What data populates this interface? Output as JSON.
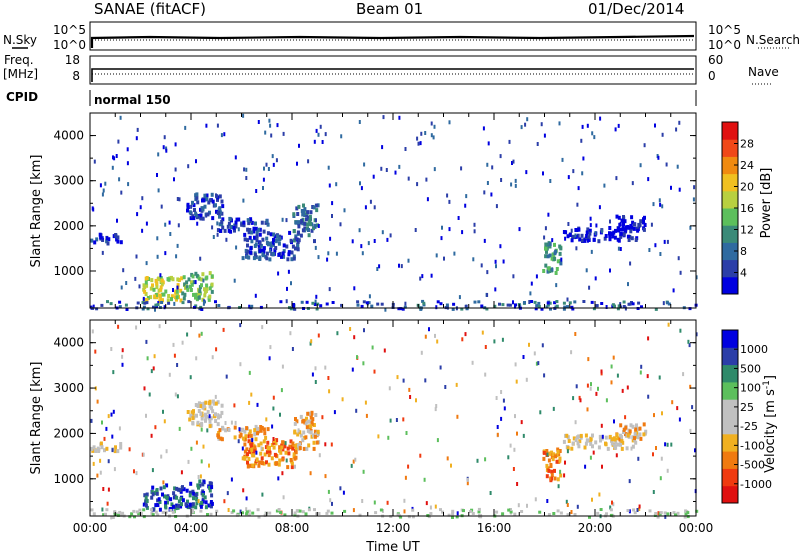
{
  "header": {
    "station": "SANAE (fitACF)",
    "beam": "Beam 01",
    "date": "01/Dec/2014"
  },
  "sky_panel": {
    "left_label": "N.Sky",
    "left_ticks": [
      "10^5",
      "10^0"
    ],
    "right_ticks": [
      "10^5",
      "10^0"
    ],
    "right_label": "N.Search"
  },
  "freq_panel": {
    "left_label": "Freq.",
    "left_unit": "[MHz]",
    "left_ticks": [
      "18",
      "8"
    ],
    "right_ticks": [
      "60",
      "0"
    ],
    "right_label": "Nave"
  },
  "cpid": {
    "label": "CPID",
    "mode": "normal 150"
  },
  "colors": {
    "power_scale": [
      "#0000e0",
      "#2b3ea8",
      "#2f6aa0",
      "#3a8a78",
      "#5cbf5c",
      "#b8d040",
      "#f0c020",
      "#f08a10",
      "#f04818",
      "#e01010"
    ],
    "velocity_scale": [
      "#e01010",
      "#f03a10",
      "#f07a10",
      "#f0b020",
      "#c0c0c0",
      "#c0c0c0",
      "#5cbf5c",
      "#2f8a6a",
      "#2b3ea8",
      "#0000e0"
    ]
  },
  "chart_data": [
    {
      "type": "heatmap",
      "title": "",
      "ylabel": "Slant Range [km]",
      "xlabel": "",
      "x_tick_labels": [
        "00:00",
        "04:00",
        "08:00",
        "12:00",
        "16:00",
        "20:00",
        "00:00"
      ],
      "x_range_hours": [
        0,
        24
      ],
      "y_ticks": [
        1000,
        2000,
        3000,
        4000
      ],
      "ylim": [
        180,
        4500
      ],
      "colorbar": {
        "label": "Power [dB]",
        "ticks": [
          "4",
          "8",
          "12",
          "16",
          "20",
          "24",
          "28"
        ]
      },
      "scatter_regions": [
        {
          "t_start": 0.0,
          "t_end": 1.2,
          "range_start": 1650,
          "range_end": 1850,
          "level": 1
        },
        {
          "t_start": 2.0,
          "t_end": 3.6,
          "range_start": 350,
          "range_end": 900,
          "level": 5
        },
        {
          "t_start": 3.6,
          "t_end": 4.8,
          "range_start": 400,
          "range_end": 1000,
          "level": 4
        },
        {
          "t_start": 3.8,
          "t_end": 5.2,
          "range_start": 2200,
          "range_end": 2750,
          "level": 1
        },
        {
          "t_start": 5.0,
          "t_end": 7.0,
          "range_start": 1900,
          "range_end": 2200,
          "level": 1
        },
        {
          "t_start": 6.0,
          "t_end": 8.2,
          "range_start": 1300,
          "range_end": 1900,
          "level": 1
        },
        {
          "t_start": 8.0,
          "t_end": 9.0,
          "range_start": 1700,
          "range_end": 2500,
          "level": 2
        },
        {
          "t_start": 17.9,
          "t_end": 18.6,
          "range_start": 1000,
          "range_end": 1700,
          "level": 3
        },
        {
          "t_start": 18.7,
          "t_end": 21.6,
          "range_start": 1700,
          "range_end": 2000,
          "level": 0
        },
        {
          "t_start": 20.8,
          "t_end": 22.0,
          "range_start": 1900,
          "range_end": 2250,
          "level": 0
        }
      ]
    },
    {
      "type": "heatmap",
      "title": "",
      "ylabel": "Slant Range [km]",
      "xlabel": "Time UT",
      "x_tick_labels": [
        "00:00",
        "04:00",
        "08:00",
        "12:00",
        "16:00",
        "20:00",
        "00:00"
      ],
      "x_range_hours": [
        0,
        24
      ],
      "y_ticks": [
        1000,
        2000,
        3000,
        4000
      ],
      "ylim": [
        180,
        4500
      ],
      "colorbar": {
        "label": "Velocity [m s^-1]",
        "ticks": [
          "1000",
          "500",
          "100",
          "25",
          "-25",
          "-100",
          "-500",
          "-1000"
        ]
      },
      "scatter_regions": [
        {
          "t_start": 0.0,
          "t_end": 1.2,
          "range_start": 1650,
          "range_end": 1850,
          "level": 4
        },
        {
          "t_start": 2.0,
          "t_end": 3.6,
          "range_start": 350,
          "range_end": 900,
          "level": 8
        },
        {
          "t_start": 3.6,
          "t_end": 4.8,
          "range_start": 400,
          "range_end": 1000,
          "level": 8
        },
        {
          "t_start": 3.8,
          "t_end": 5.2,
          "range_start": 2200,
          "range_end": 2750,
          "level": 4
        },
        {
          "t_start": 5.0,
          "t_end": 7.0,
          "range_start": 1900,
          "range_end": 2200,
          "level": 3
        },
        {
          "t_start": 6.0,
          "t_end": 8.2,
          "range_start": 1300,
          "range_end": 1900,
          "level": 2
        },
        {
          "t_start": 8.0,
          "t_end": 9.0,
          "range_start": 1700,
          "range_end": 2500,
          "level": 3
        },
        {
          "t_start": 17.9,
          "t_end": 18.6,
          "range_start": 1000,
          "range_end": 1700,
          "level": 2
        },
        {
          "t_start": 18.7,
          "t_end": 21.6,
          "range_start": 1700,
          "range_end": 2000,
          "level": 4
        },
        {
          "t_start": 20.8,
          "t_end": 22.0,
          "range_start": 1900,
          "range_end": 2250,
          "level": 3
        }
      ]
    }
  ]
}
